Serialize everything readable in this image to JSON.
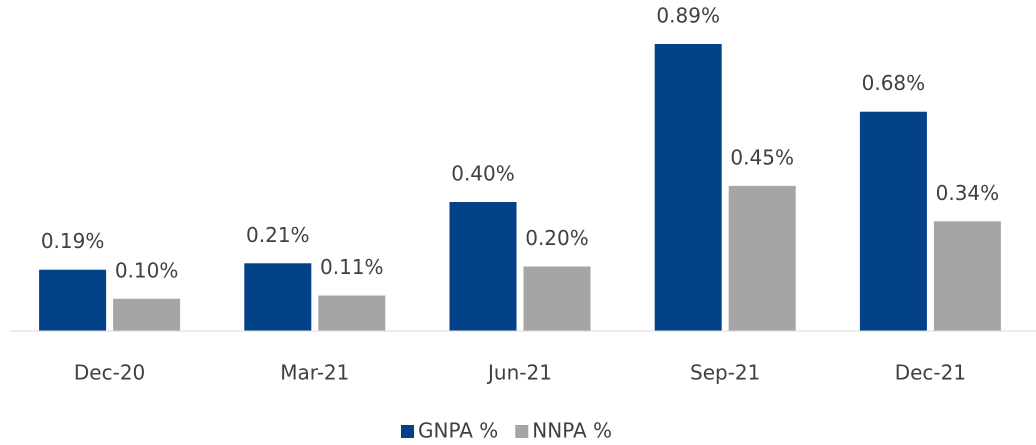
{
  "chart_data": {
    "type": "bar",
    "categories": [
      "Dec-20",
      "Mar-21",
      "Jun-21",
      "Sep-21",
      "Dec-21"
    ],
    "series": [
      {
        "name": "GNPA %",
        "color": "#034189",
        "values": [
          0.19,
          0.21,
          0.4,
          0.89,
          0.68
        ],
        "value_labels": [
          "0.19%",
          "0.21%",
          "0.40%",
          "0.89%",
          "0.68%"
        ]
      },
      {
        "name": "NNPA %",
        "color": "#a5a5a5",
        "values": [
          0.1,
          0.11,
          0.2,
          0.45,
          0.34
        ],
        "value_labels": [
          "0.10%",
          "0.11%",
          "0.20%",
          "0.45%",
          "0.34%"
        ]
      }
    ],
    "legend": "bottom"
  }
}
